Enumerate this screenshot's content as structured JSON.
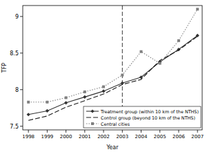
{
  "chart_data": {
    "type": "line",
    "x_label": "Year",
    "y_label": "TFP",
    "x": [
      1998,
      1999,
      2000,
      2001,
      2002,
      2003,
      2004,
      2005,
      2006,
      2007
    ],
    "series": [
      {
        "name": "Treatment group (within 10 km of the NTHS)",
        "color": "#333333",
        "marker": "diamond",
        "line_style": "solid",
        "values": [
          7.66,
          7.71,
          7.82,
          7.9,
          7.98,
          8.09,
          8.17,
          8.38,
          8.55,
          8.74
        ]
      },
      {
        "name": "Control group (beyond 10 km of the NTHS)",
        "color": "#1a1a1a",
        "marker": "none",
        "line_style": "dashed",
        "values": [
          7.58,
          7.64,
          7.76,
          7.85,
          7.94,
          8.07,
          8.14,
          8.4,
          8.54,
          8.73
        ]
      },
      {
        "name": "Central cities",
        "color": "#808080",
        "marker": "square",
        "line_style": "dotted",
        "values": [
          7.83,
          7.83,
          7.89,
          7.97,
          8.04,
          8.2,
          8.52,
          8.36,
          8.67,
          9.1
        ]
      }
    ],
    "vline": 2003,
    "xlim": [
      1997.7,
      2007.25
    ],
    "xticks": [
      1998,
      1999,
      2000,
      2001,
      2002,
      2003,
      2004,
      2005,
      2006,
      2007
    ],
    "ylim": [
      7.45,
      9.15
    ],
    "yticks": [
      7.5,
      8,
      8.5,
      9
    ],
    "grid": false,
    "legend": "lower right"
  }
}
